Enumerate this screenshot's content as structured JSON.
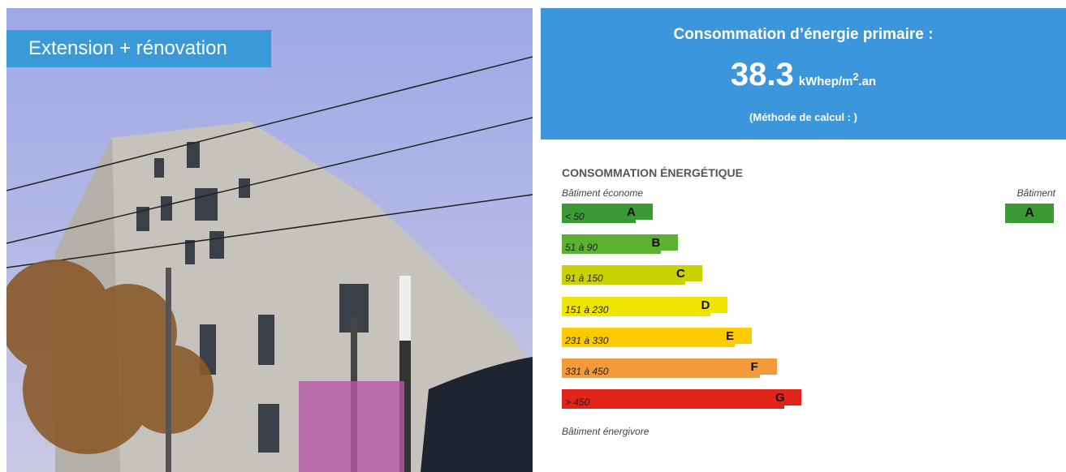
{
  "photo": {
    "caption": "Extension + rénovation"
  },
  "header": {
    "title": "Consommation d’énergie primaire :",
    "value": 38.3,
    "unit": "kWhep/m",
    "unit_sup": "2",
    "unit_suffix": ".an",
    "method": "(Méthode de calcul : )"
  },
  "label": {
    "title": "CONSOMMATION ÉNERGÉTIQUE",
    "top_note": "Bâtiment économe",
    "bottom_note": "Bâtiment énergivore",
    "building_heading": "Bâtiment",
    "building_class": "A",
    "building_color": "#3a9a36",
    "classes": [
      {
        "range": "< 50",
        "letter": "A",
        "color": "#3a9a36"
      },
      {
        "range": "51 à 90",
        "letter": "B",
        "color": "#5cb130"
      },
      {
        "range": "91 à 150",
        "letter": "C",
        "color": "#c8d200"
      },
      {
        "range": "151 à 230",
        "letter": "D",
        "color": "#f0e500"
      },
      {
        "range": "231 à 330",
        "letter": "E",
        "color": "#fccc00"
      },
      {
        "range": "331 à 450",
        "letter": "F",
        "color": "#f39b3a"
      },
      {
        "range": "> 450",
        "letter": "G",
        "color": "#e2231a"
      }
    ]
  }
}
